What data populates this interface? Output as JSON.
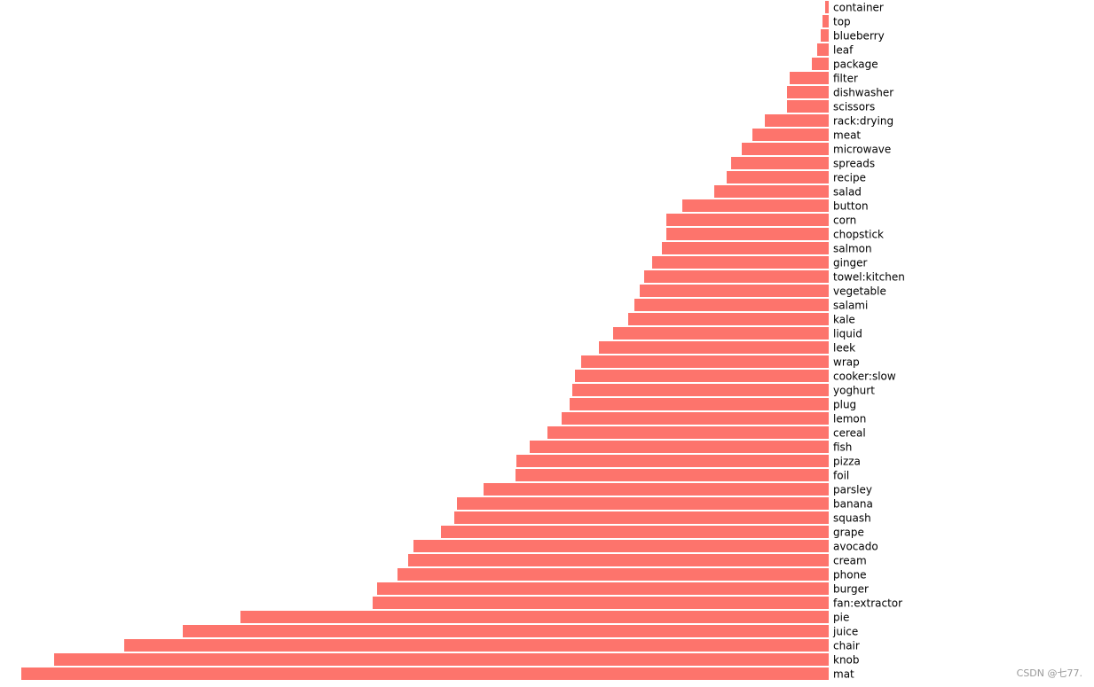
{
  "chart_data": {
    "type": "hbar",
    "color": "#fd746c",
    "categories": [
      "container",
      "top",
      "blueberry",
      "leaf",
      "package",
      "filter",
      "dishwasher",
      "scissors",
      "rack:drying",
      "meat",
      "microwave",
      "spreads",
      "recipe",
      "salad",
      "button",
      "corn",
      "chopstick",
      "salmon",
      "ginger",
      "towel:kitchen",
      "vegetable",
      "salami",
      "kale",
      "liquid",
      "leek",
      "wrap",
      "cooker:slow",
      "yoghurt",
      "plug",
      "lemon",
      "cereal",
      "fish",
      "pizza",
      "foil",
      "parsley",
      "banana",
      "squash",
      "grape",
      "avocado",
      "cream",
      "phone",
      "burger",
      "fan:extractor",
      "pie",
      "juice",
      "chair",
      "knob",
      "mat"
    ],
    "values": [
      4,
      7,
      9,
      13,
      19,
      44,
      47,
      47,
      72,
      86,
      98,
      110,
      115,
      129,
      165,
      183,
      183,
      188,
      199,
      208,
      213,
      219,
      226,
      243,
      259,
      279,
      286,
      289,
      292,
      301,
      317,
      337,
      352,
      353,
      389,
      419,
      422,
      437,
      468,
      474,
      486,
      509,
      514,
      663,
      728,
      794,
      873,
      910
    ]
  },
  "watermark": "CSDN @七77."
}
